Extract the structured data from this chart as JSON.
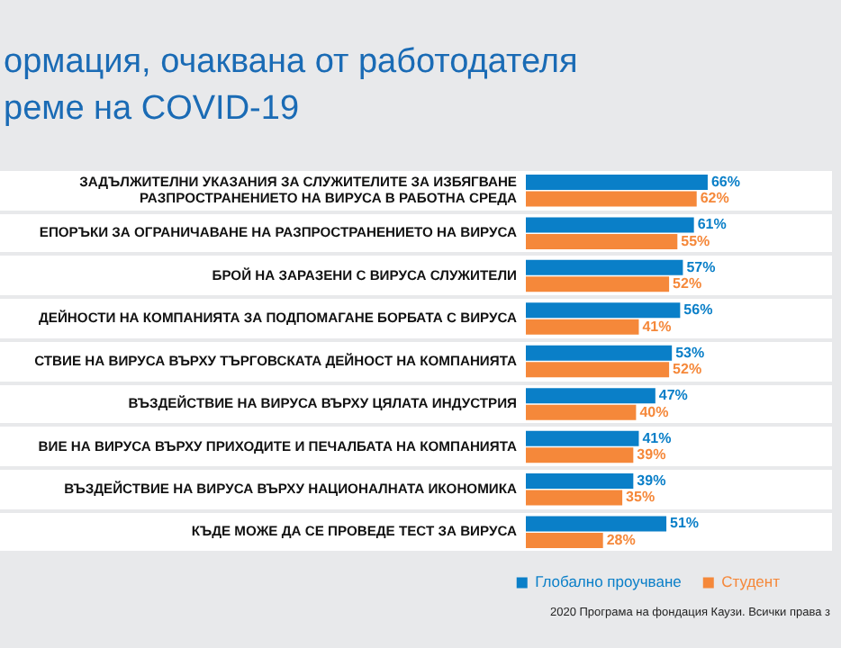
{
  "chart_data": {
    "type": "bar",
    "orientation": "horizontal",
    "title": "ормация, очаквана от работодателя\nреме на COVID-19",
    "categories": [
      "ЗАДЪЛЖИТЕЛНИ УКАЗАНИЯ ЗА СЛУЖИТЕЛИТЕ ЗА ИЗБЯГВАНЕ РАЗПРОСТРАНЕНИЕТО НА ВИРУСА В РАБОТНА СРЕДА",
      "ЕПОРЪКИ ЗА ОГРАНИЧАВАНЕ НА РАЗПРОСТРАНЕНИЕТО НА ВИРУСА",
      "БРОЙ НА ЗАРАЗЕНИ С ВИРУСА СЛУЖИТЕЛИ",
      "ДЕЙНОСТИ НА КОМПАНИЯТА ЗА ПОДПОМАГАНЕ БОРБАТА С ВИРУСА",
      "СТВИЕ НА ВИРУСА ВЪРХУ ТЪРГОВСКАТА ДЕЙНОСТ НА КОМПАНИЯТА",
      "ВЪЗДЕЙСТВИЕ НА ВИРУСА ВЪРХУ ЦЯЛАТА ИНДУСТРИЯ",
      "ВИЕ НА ВИРУСА ВЪРХУ ПРИХОДИТЕ И ПЕЧАЛБАТА НА КОМПАНИЯТА",
      "ВЪЗДЕЙСТВИЕ НА ВИРУСА ВЪРХУ НАЦИОНАЛНАТА ИКОНОМИКА",
      "КЪДЕ МОЖЕ ДА СЕ ПРОВЕДЕ ТЕСТ ЗА ВИРУСА"
    ],
    "series": [
      {
        "name": "Глобално проучване",
        "color": "#0a7fc8",
        "values": [
          66,
          61,
          57,
          56,
          53,
          47,
          41,
          39,
          51
        ],
        "value_labels": [
          "66%",
          "61%",
          "57%",
          "56%",
          "53%",
          "47%",
          "41%",
          "39%",
          "51%"
        ]
      },
      {
        "name": "Студент",
        "color": "#f5883a",
        "values": [
          62,
          55,
          52,
          41,
          52,
          40,
          39,
          35,
          28
        ],
        "value_labels": [
          "62%",
          "55%",
          "52%",
          "41%",
          "52%",
          "40%",
          "39%",
          "35%",
          "28%"
        ]
      }
    ],
    "tick_labels": "y",
    "grid": false,
    "legend": "bottom right",
    "annotations": [
      "2020 Програма на фондация Каузи. Всички права з"
    ]
  }
}
